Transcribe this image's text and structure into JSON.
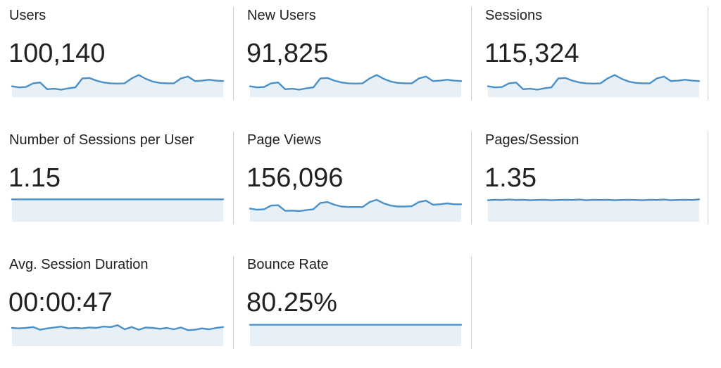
{
  "metrics": [
    {
      "name": "users",
      "title": "Users",
      "value": "100,140",
      "trend": [
        0.45,
        0.4,
        0.42,
        0.58,
        0.62,
        0.32,
        0.34,
        0.3,
        0.36,
        0.4,
        0.8,
        0.82,
        0.7,
        0.62,
        0.58,
        0.57,
        0.58,
        0.8,
        0.95,
        0.78,
        0.66,
        0.6,
        0.58,
        0.58,
        0.8,
        0.88,
        0.68,
        0.7,
        0.74,
        0.7,
        0.68
      ]
    },
    {
      "name": "new-users",
      "title": "New Users",
      "value": "91,825",
      "trend": [
        0.45,
        0.4,
        0.42,
        0.58,
        0.62,
        0.32,
        0.34,
        0.3,
        0.36,
        0.4,
        0.8,
        0.82,
        0.7,
        0.62,
        0.58,
        0.57,
        0.58,
        0.8,
        0.95,
        0.78,
        0.66,
        0.6,
        0.58,
        0.58,
        0.8,
        0.88,
        0.68,
        0.7,
        0.74,
        0.7,
        0.68
      ]
    },
    {
      "name": "sessions",
      "title": "Sessions",
      "value": "115,324",
      "trend": [
        0.45,
        0.4,
        0.42,
        0.58,
        0.62,
        0.32,
        0.34,
        0.3,
        0.36,
        0.4,
        0.8,
        0.82,
        0.7,
        0.62,
        0.58,
        0.57,
        0.58,
        0.8,
        0.95,
        0.78,
        0.66,
        0.6,
        0.58,
        0.58,
        0.8,
        0.88,
        0.68,
        0.7,
        0.74,
        0.7,
        0.68
      ]
    },
    {
      "name": "sessions-per-user",
      "title": "Number of Sessions per User",
      "value": "1.15",
      "trend": [
        0.96,
        0.96,
        0.96,
        0.96,
        0.96,
        0.96,
        0.96,
        0.96,
        0.96,
        0.96,
        0.96,
        0.96,
        0.96,
        0.96,
        0.96,
        0.96,
        0.96,
        0.96,
        0.96,
        0.96,
        0.96,
        0.96,
        0.96,
        0.96,
        0.96,
        0.96,
        0.96,
        0.96,
        0.96,
        0.96,
        0.96
      ]
    },
    {
      "name": "page-views",
      "title": "Page Views",
      "value": "156,096",
      "trend": [
        0.55,
        0.5,
        0.52,
        0.68,
        0.7,
        0.45,
        0.46,
        0.44,
        0.48,
        0.52,
        0.8,
        0.84,
        0.72,
        0.64,
        0.62,
        0.62,
        0.62,
        0.84,
        0.94,
        0.78,
        0.68,
        0.64,
        0.64,
        0.66,
        0.84,
        0.9,
        0.72,
        0.74,
        0.78,
        0.74,
        0.74
      ]
    },
    {
      "name": "pages-per-session",
      "title": "Pages/Session",
      "value": "1.35",
      "trend": [
        0.92,
        0.94,
        0.93,
        0.95,
        0.93,
        0.94,
        0.92,
        0.93,
        0.94,
        0.92,
        0.93,
        0.94,
        0.93,
        0.95,
        0.92,
        0.94,
        0.93,
        0.94,
        0.92,
        0.93,
        0.94,
        0.93,
        0.92,
        0.94,
        0.93,
        0.95,
        0.92,
        0.93,
        0.94,
        0.93,
        0.96
      ]
    },
    {
      "name": "avg-session-duration",
      "title": "Avg. Session Duration",
      "value": "00:00:47",
      "trend": [
        0.78,
        0.76,
        0.78,
        0.82,
        0.7,
        0.76,
        0.8,
        0.84,
        0.76,
        0.78,
        0.76,
        0.8,
        0.78,
        0.84,
        0.82,
        0.9,
        0.72,
        0.82,
        0.7,
        0.8,
        0.78,
        0.74,
        0.78,
        0.72,
        0.8,
        0.68,
        0.7,
        0.76,
        0.72,
        0.78,
        0.82
      ]
    },
    {
      "name": "bounce-rate",
      "title": "Bounce Rate",
      "value": "80.25%",
      "trend": [
        0.92,
        0.92,
        0.92,
        0.92,
        0.92,
        0.92,
        0.92,
        0.92,
        0.92,
        0.92,
        0.92,
        0.92,
        0.92,
        0.92,
        0.92,
        0.92,
        0.92,
        0.92,
        0.92,
        0.92,
        0.92,
        0.92,
        0.92,
        0.92,
        0.92,
        0.92,
        0.92,
        0.92,
        0.92,
        0.92,
        0.92
      ]
    }
  ],
  "colors": {
    "line": "#4a90c8",
    "area": "#e8f0f7",
    "divider": "#cfcfcf",
    "text": "#212121"
  }
}
